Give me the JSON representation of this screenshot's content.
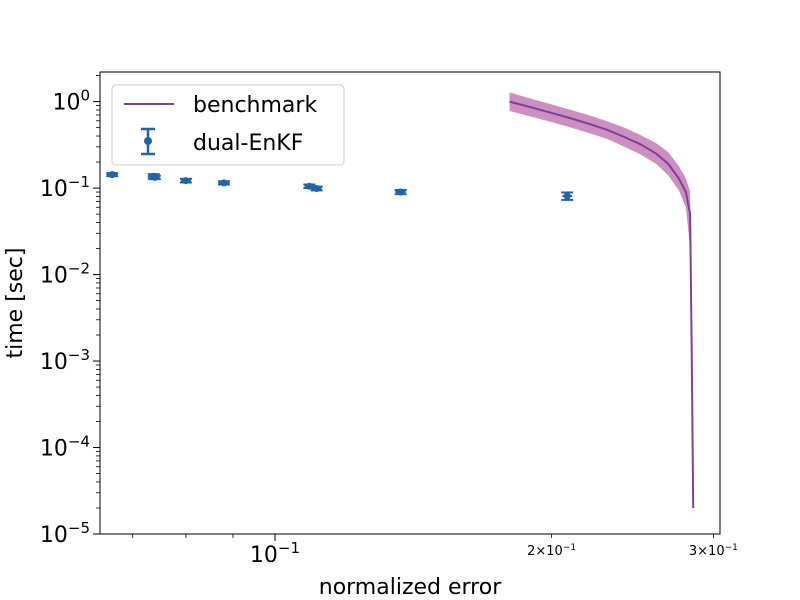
{
  "chart_data": {
    "type": "line",
    "xlabel": "normalized error",
    "ylabel": "time [sec]",
    "xscale": "log",
    "yscale": "log",
    "xlim": [
      0.0645,
      0.305
    ],
    "ylim": [
      1e-05,
      2.2
    ],
    "grid": false,
    "legend_position": "top-left",
    "x_ticks": [
      {
        "value": 0.1,
        "base": "10",
        "exp": "−1",
        "size": "major"
      },
      {
        "value": 0.2,
        "base": "2×10",
        "exp": "−1",
        "size": "minor"
      },
      {
        "value": 0.3,
        "base": "3×10",
        "exp": "−1",
        "size": "minor"
      }
    ],
    "y_ticks": [
      {
        "value": 1,
        "base": "10",
        "exp": "0"
      },
      {
        "value": 0.1,
        "base": "10",
        "exp": "−1"
      },
      {
        "value": 0.01,
        "base": "10",
        "exp": "−2"
      },
      {
        "value": 0.001,
        "base": "10",
        "exp": "−3"
      },
      {
        "value": 0.0001,
        "base": "10",
        "exp": "−4"
      },
      {
        "value": 1e-05,
        "base": "10",
        "exp": "−5"
      }
    ],
    "series": [
      {
        "name": "benchmark",
        "kind": "line-with-band",
        "color": "#7f3f98",
        "band_color": "#c47bb5",
        "points": [
          {
            "x": 0.18,
            "y": 1.0,
            "lo": 0.78,
            "hi": 1.28
          },
          {
            "x": 0.19,
            "y": 0.86,
            "lo": 0.67,
            "hi": 1.08
          },
          {
            "x": 0.2,
            "y": 0.74,
            "lo": 0.58,
            "hi": 0.93
          },
          {
            "x": 0.21,
            "y": 0.64,
            "lo": 0.5,
            "hi": 0.8
          },
          {
            "x": 0.22,
            "y": 0.55,
            "lo": 0.43,
            "hi": 0.69
          },
          {
            "x": 0.23,
            "y": 0.47,
            "lo": 0.37,
            "hi": 0.59
          },
          {
            "x": 0.24,
            "y": 0.39,
            "lo": 0.3,
            "hi": 0.5
          },
          {
            "x": 0.25,
            "y": 0.32,
            "lo": 0.245,
            "hi": 0.41
          },
          {
            "x": 0.26,
            "y": 0.25,
            "lo": 0.19,
            "hi": 0.33
          },
          {
            "x": 0.268,
            "y": 0.19,
            "lo": 0.14,
            "hi": 0.26
          },
          {
            "x": 0.275,
            "y": 0.13,
            "lo": 0.095,
            "hi": 0.18
          },
          {
            "x": 0.28,
            "y": 0.09,
            "lo": 0.06,
            "hi": 0.13
          },
          {
            "x": 0.283,
            "y": 0.05,
            "lo": 0.02,
            "hi": 0.09
          },
          {
            "x": 0.2835,
            "y": 0.01,
            "lo": 0.004,
            "hi": 0.03
          },
          {
            "x": 0.2842,
            "y": 0.001,
            "lo": 0.0004,
            "hi": 0.003
          },
          {
            "x": 0.2848,
            "y": 0.0001,
            "lo": 5e-05,
            "hi": 0.0002
          },
          {
            "x": 0.2852,
            "y": 2e-05,
            "lo": 1.5e-05,
            "hi": 3e-05
          }
        ]
      },
      {
        "name": "dual-EnKF",
        "kind": "errorbar",
        "color": "#1f65ad",
        "points": [
          {
            "x": 0.0665,
            "y": 0.143,
            "xerr": 0.0009,
            "yerr": 0.006
          },
          {
            "x": 0.0738,
            "y": 0.137,
            "xerr": 0.0011,
            "yerr": 0.008
          },
          {
            "x": 0.074,
            "y": 0.133,
            "xerr": 0.0009,
            "yerr": 0.006
          },
          {
            "x": 0.08,
            "y": 0.122,
            "xerr": 0.001,
            "yerr": 0.006
          },
          {
            "x": 0.088,
            "y": 0.115,
            "xerr": 0.0012,
            "yerr": 0.005
          },
          {
            "x": 0.109,
            "y": 0.105,
            "xerr": 0.0013,
            "yerr": 0.005
          },
          {
            "x": 0.111,
            "y": 0.099,
            "xerr": 0.0014,
            "yerr": 0.005
          },
          {
            "x": 0.137,
            "y": 0.09,
            "xerr": 0.0018,
            "yerr": 0.005
          },
          {
            "x": 0.208,
            "y": 0.081,
            "xerr": 0.0025,
            "yerr": 0.008
          }
        ]
      }
    ]
  }
}
